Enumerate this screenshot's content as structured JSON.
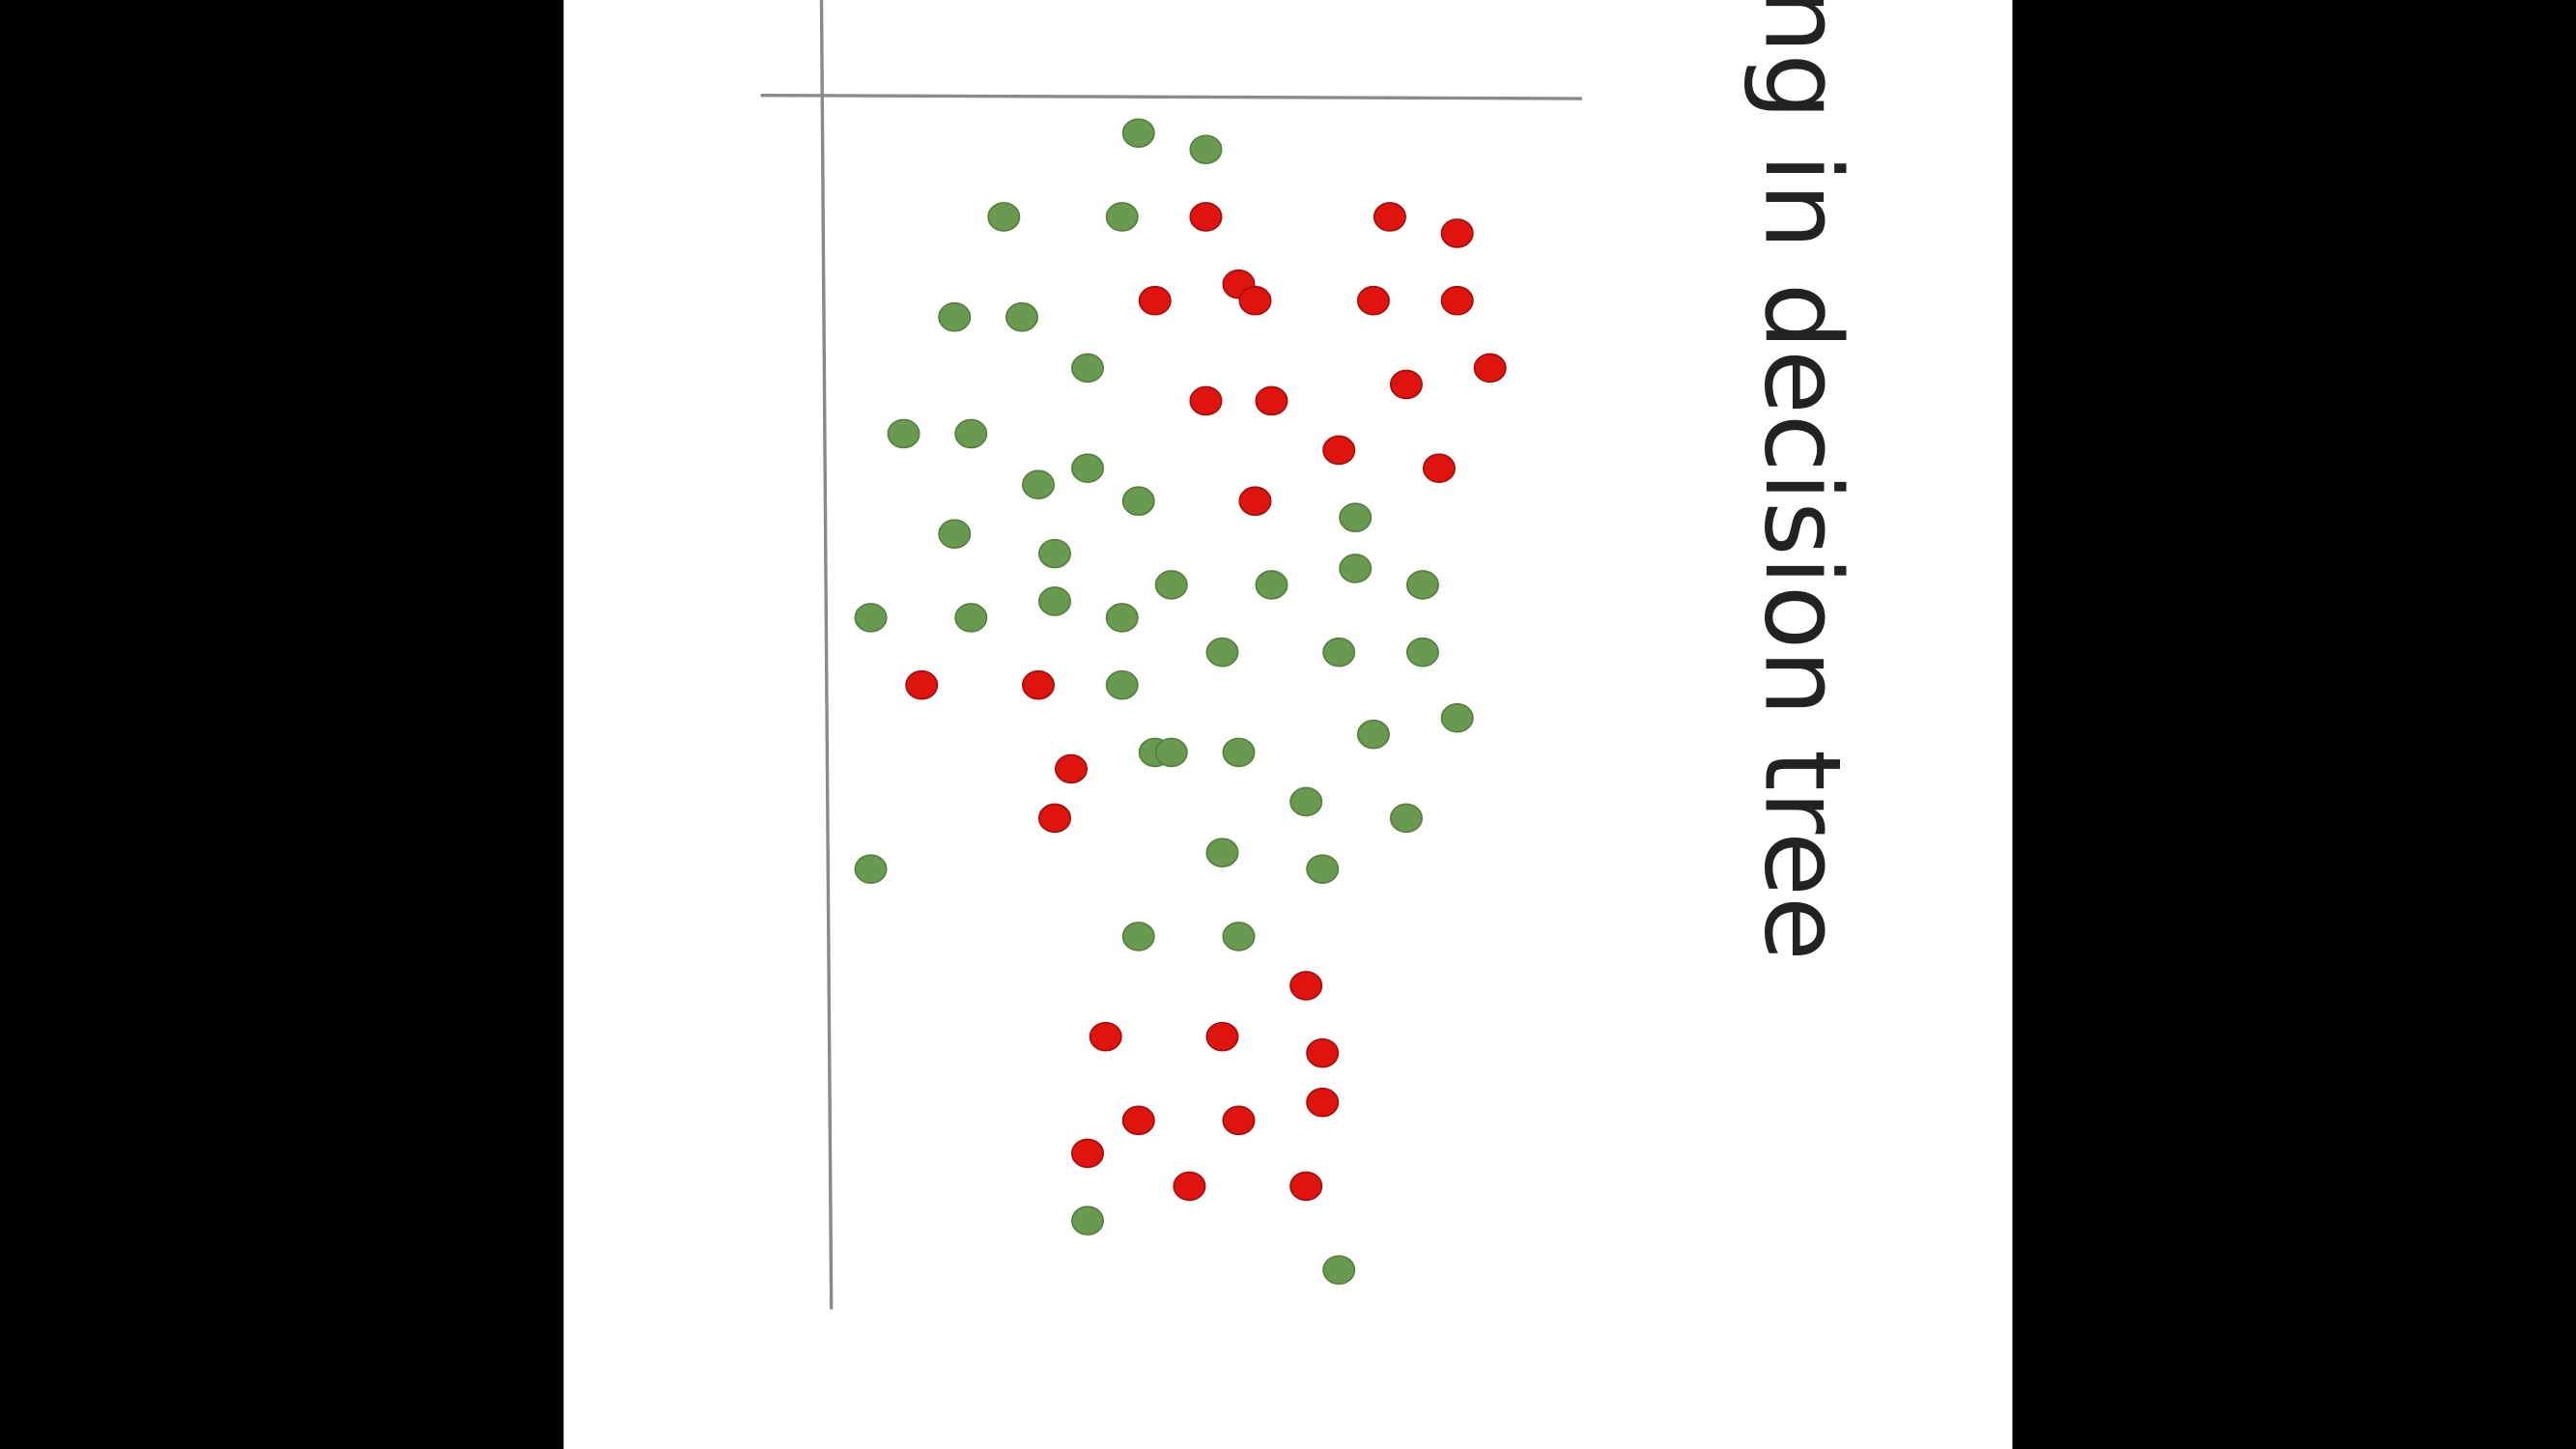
{
  "slide": {
    "title": "tting in decision tree"
  }
}
